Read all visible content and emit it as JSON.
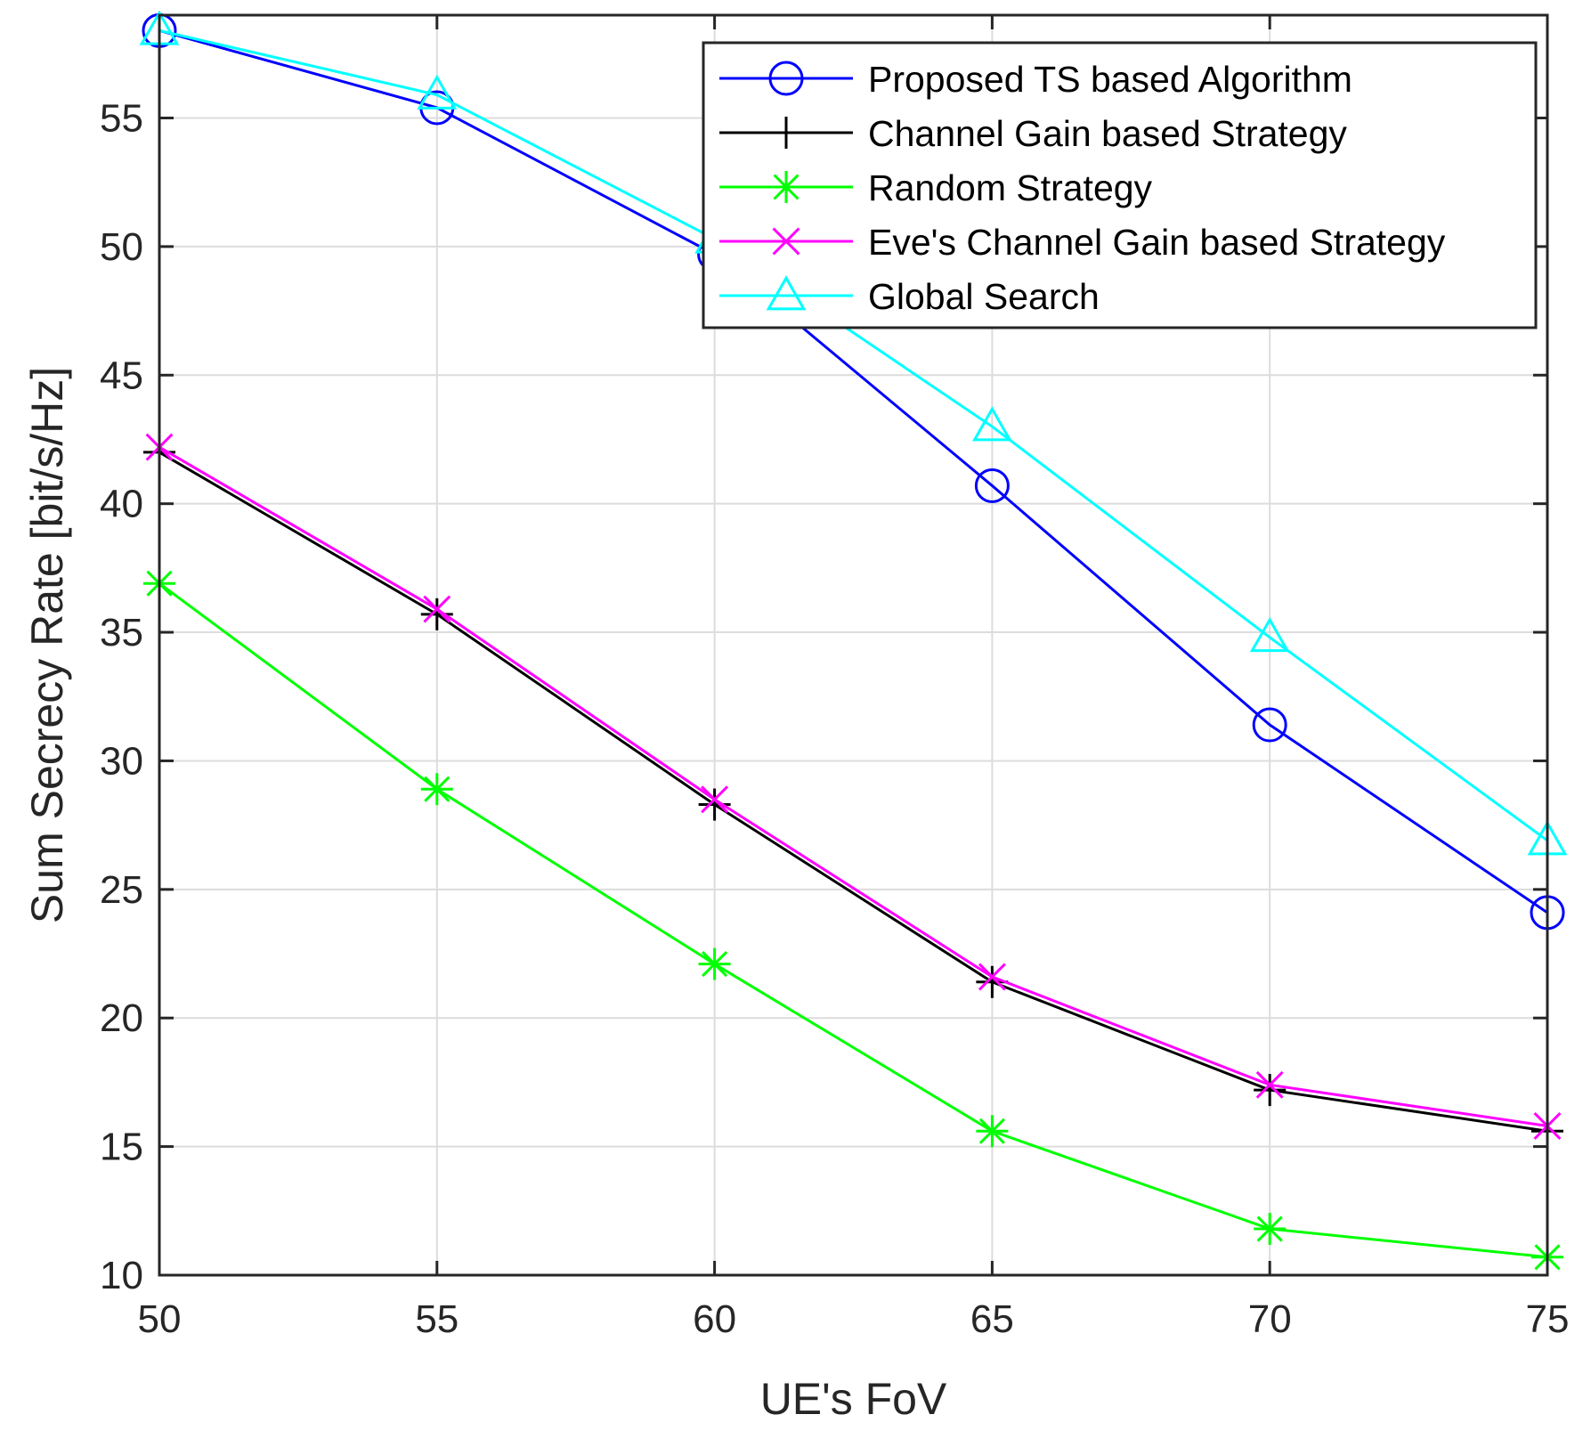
{
  "chart_data": {
    "type": "line",
    "title": "",
    "xlabel": "UE's FoV",
    "ylabel": "Sum Secrecy Rate [bit/s/Hz]",
    "x": [
      50,
      55,
      60,
      65,
      70,
      75
    ],
    "xlim": [
      50,
      75
    ],
    "ylim": [
      10,
      59
    ],
    "xticks": [
      50,
      55,
      60,
      65,
      70,
      75
    ],
    "yticks": [
      10,
      15,
      20,
      25,
      30,
      35,
      40,
      45,
      50,
      55
    ],
    "grid": true,
    "legend_position": "top-right",
    "series": [
      {
        "name": "Proposed TS based Algorithm",
        "marker": "circle",
        "color": "#0000ff",
        "values": [
          58.4,
          55.4,
          49.7,
          40.7,
          31.4,
          24.1
        ]
      },
      {
        "name": "Channel Gain based Strategy",
        "marker": "plus",
        "color": "#000000",
        "values": [
          42.0,
          35.7,
          28.3,
          21.4,
          17.2,
          15.6
        ]
      },
      {
        "name": "Random Strategy",
        "marker": "asterisk",
        "color": "#00ff00",
        "values": [
          36.9,
          28.9,
          22.1,
          15.6,
          11.8,
          10.7
        ]
      },
      {
        "name": "Eve's Channel Gain based Strategy",
        "marker": "x",
        "color": "#ff00ff",
        "values": [
          42.2,
          35.9,
          28.5,
          21.6,
          17.4,
          15.8
        ]
      },
      {
        "name": "Global Search",
        "marker": "triangle",
        "color": "#00ffff",
        "values": [
          58.4,
          55.9,
          50.3,
          43.0,
          34.8,
          26.9
        ]
      }
    ]
  }
}
